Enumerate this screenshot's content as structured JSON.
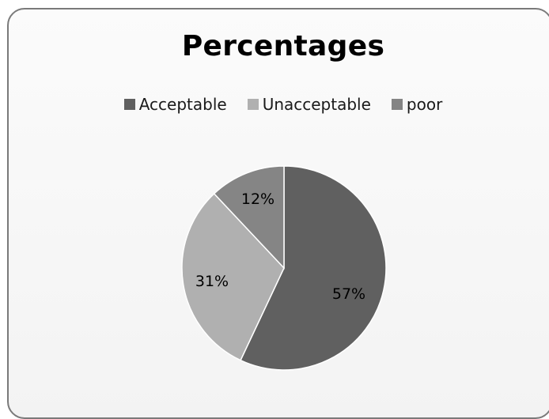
{
  "chart_data": {
    "type": "pie",
    "title": "Percentages",
    "categories": [
      "Acceptable",
      "Unacceptable",
      "poor"
    ],
    "values": [
      57,
      31,
      12
    ],
    "labels": [
      "57%",
      "31%",
      "12%"
    ],
    "colors": [
      "#606060",
      "#b0b0b0",
      "#858585"
    ],
    "legend_position": "top"
  }
}
